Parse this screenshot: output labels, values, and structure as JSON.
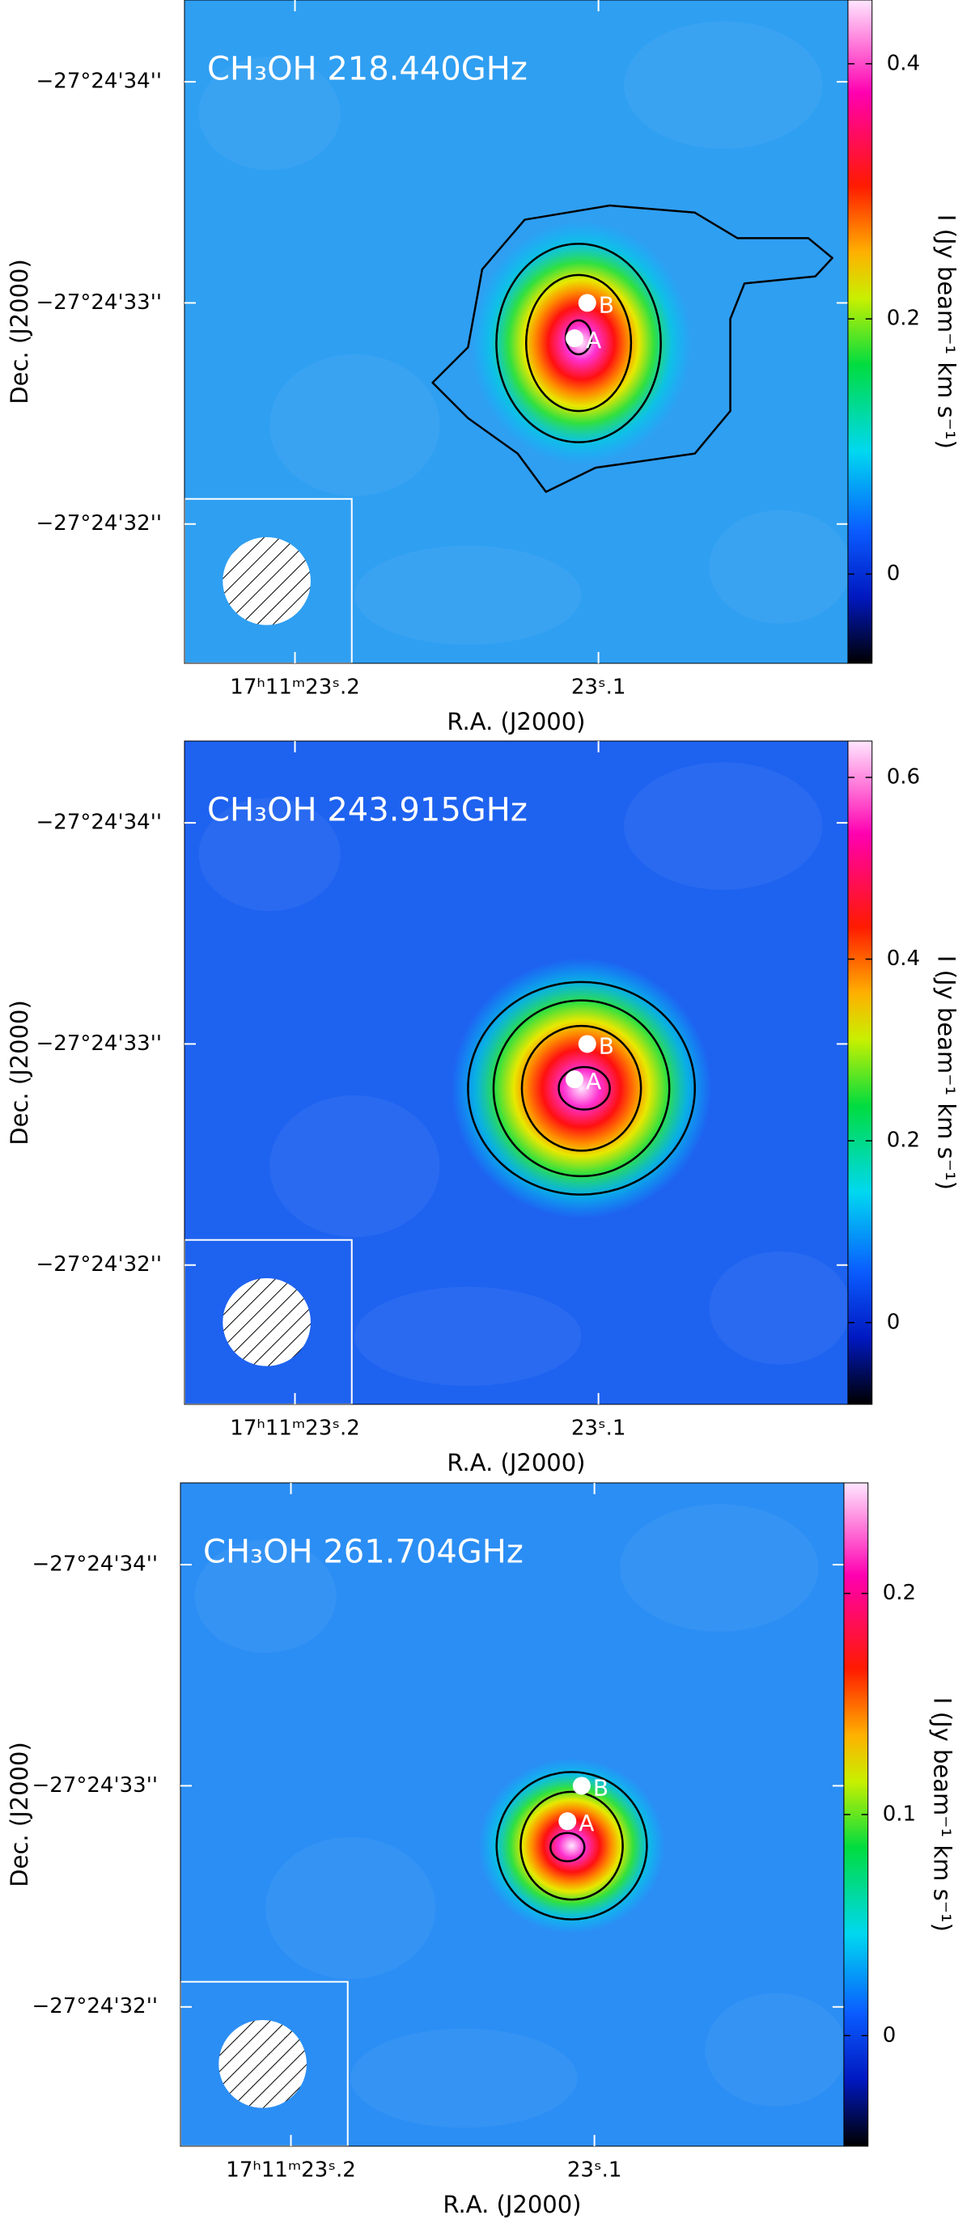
{
  "chart_data": [
    {
      "type": "heatmap",
      "title": "CH₃OH 218.440GHz",
      "x_label": "R.A. (J2000)",
      "y_label": "Dec. (J2000)",
      "colorbar_label": "I (Jy beam⁻¹ km s⁻¹)",
      "xlim": [
        23.2364,
        23.0178
      ],
      "xticks": [
        {
          "value": 23.2,
          "label": "17ʰ11ᵐ23ˢ.2"
        },
        {
          "value": 23.1,
          "label": "23ˢ.1"
        }
      ],
      "ylim": [
        34.37,
        31.37
      ],
      "yticks": [
        {
          "value": 32,
          "label": "−27°24'32''"
        },
        {
          "value": 33,
          "label": "−27°24'33''"
        },
        {
          "value": 34,
          "label": "−27°24'34''"
        }
      ],
      "clim": [
        -0.07,
        0.45
      ],
      "cticks": [
        0,
        0.2,
        0.4
      ],
      "background": "#2f9ff2",
      "sources": {
        "labels": [
          "A",
          "B"
        ],
        "x": [
          23.1079,
          23.1037
        ],
        "y": [
          32.84,
          33.0
        ]
      }
    },
    {
      "type": "heatmap",
      "title": "CH₃OH 243.915GHz",
      "x_label": "R.A. (J2000)",
      "y_label": "Dec. (J2000)",
      "colorbar_label": "I (Jy beam⁻¹ km s⁻¹)",
      "xlim": [
        23.2364,
        23.0178
      ],
      "xticks": [
        {
          "value": 23.2,
          "label": "17ʰ11ᵐ23ˢ.2"
        },
        {
          "value": 23.1,
          "label": "23ˢ.1"
        }
      ],
      "ylim": [
        34.37,
        31.37
      ],
      "yticks": [
        {
          "value": 32,
          "label": "−27°24'32''"
        },
        {
          "value": 33,
          "label": "−27°24'33''"
        },
        {
          "value": 34,
          "label": "−27°24'34''"
        }
      ],
      "clim": [
        -0.09,
        0.64
      ],
      "cticks": [
        0,
        0.2,
        0.4,
        0.6
      ],
      "background": "#1e62f0",
      "sources": {
        "labels": [
          "A",
          "B"
        ],
        "x": [
          23.1079,
          23.1037
        ],
        "y": [
          32.84,
          33.0
        ]
      }
    },
    {
      "type": "heatmap",
      "title": "CH₃OH 261.704GHz",
      "x_label": "R.A. (J2000)",
      "y_label": "Dec. (J2000)",
      "colorbar_label": "I (Jy beam⁻¹ km s⁻¹)",
      "xlim": [
        23.2364,
        23.0178
      ],
      "xticks": [
        {
          "value": 23.2,
          "label": "17ʰ11ᵐ23ˢ.2"
        },
        {
          "value": 23.1,
          "label": "23ˢ.1"
        }
      ],
      "ylim": [
        34.37,
        31.37
      ],
      "yticks": [
        {
          "value": 32,
          "label": "−27°24'32''"
        },
        {
          "value": 33,
          "label": "−27°24'33''"
        },
        {
          "value": 34,
          "label": "−27°24'34''"
        }
      ],
      "clim": [
        -0.05,
        0.25
      ],
      "cticks": [
        0,
        0.1,
        0.2
      ],
      "background": "#2b8ef4",
      "sources": {
        "labels": [
          "A",
          "B"
        ],
        "x": [
          23.1089,
          23.1042
        ],
        "y": [
          32.84,
          33.0
        ]
      }
    }
  ]
}
